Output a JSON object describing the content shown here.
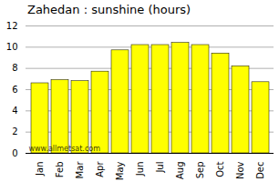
{
  "chart_data": {
    "type": "bar",
    "title": "Zahedan : sunshine (hours)",
    "categories": [
      "Jan",
      "Feb",
      "Mar",
      "Apr",
      "May",
      "Jun",
      "Jul",
      "Aug",
      "Sep",
      "Oct",
      "Nov",
      "Dec"
    ],
    "values": [
      6.6,
      6.9,
      6.8,
      7.7,
      9.7,
      10.2,
      10.2,
      10.4,
      10.2,
      9.4,
      8.2,
      6.7
    ],
    "color": "#FFFF00",
    "ylim": [
      0,
      12
    ],
    "yticks": [
      0,
      2,
      4,
      6,
      8,
      10,
      12
    ],
    "grid": true,
    "annotations": [
      "www.allmetsat.com"
    ]
  }
}
